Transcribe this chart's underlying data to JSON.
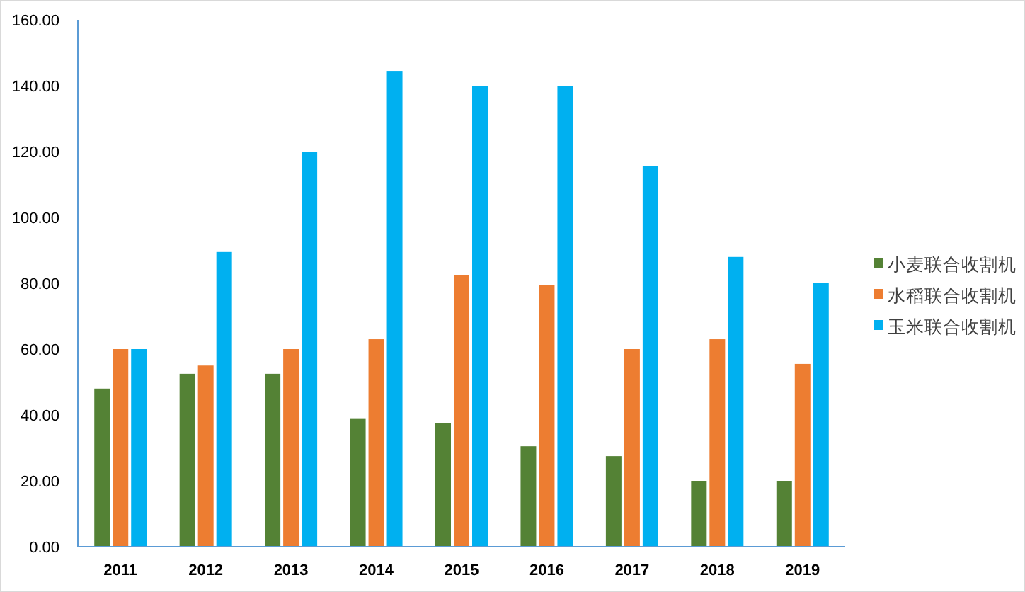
{
  "chart_data": {
    "type": "bar",
    "categories": [
      "2011",
      "2012",
      "2013",
      "2014",
      "2015",
      "2016",
      "2017",
      "2018",
      "2019"
    ],
    "series": [
      {
        "name": "小麦联合收割机",
        "color": "#548235",
        "values": [
          48,
          52.5,
          52.5,
          39,
          37.5,
          30.5,
          27.5,
          20,
          20
        ]
      },
      {
        "name": "水稻联合收割机",
        "color": "#ed7d31",
        "values": [
          60,
          55,
          60,
          63,
          82.5,
          79.5,
          60,
          63,
          55.5
        ]
      },
      {
        "name": "玉米联合收割机",
        "color": "#00b0f0",
        "values": [
          60,
          89.5,
          120,
          144.5,
          140,
          140,
          115.5,
          88,
          80
        ]
      }
    ],
    "ylim": [
      0,
      160
    ],
    "yticks": [
      {
        "value": 0,
        "label": "0.00"
      },
      {
        "value": 20,
        "label": "20.00"
      },
      {
        "value": 40,
        "label": "40.00"
      },
      {
        "value": 60,
        "label": "60.00"
      },
      {
        "value": 80,
        "label": "80.00"
      },
      {
        "value": 100,
        "label": "100.00"
      },
      {
        "value": 120,
        "label": "120.00"
      },
      {
        "value": 140,
        "label": "140.00"
      },
      {
        "value": 160,
        "label": "160.00"
      }
    ],
    "grid": false,
    "legend": "right"
  }
}
